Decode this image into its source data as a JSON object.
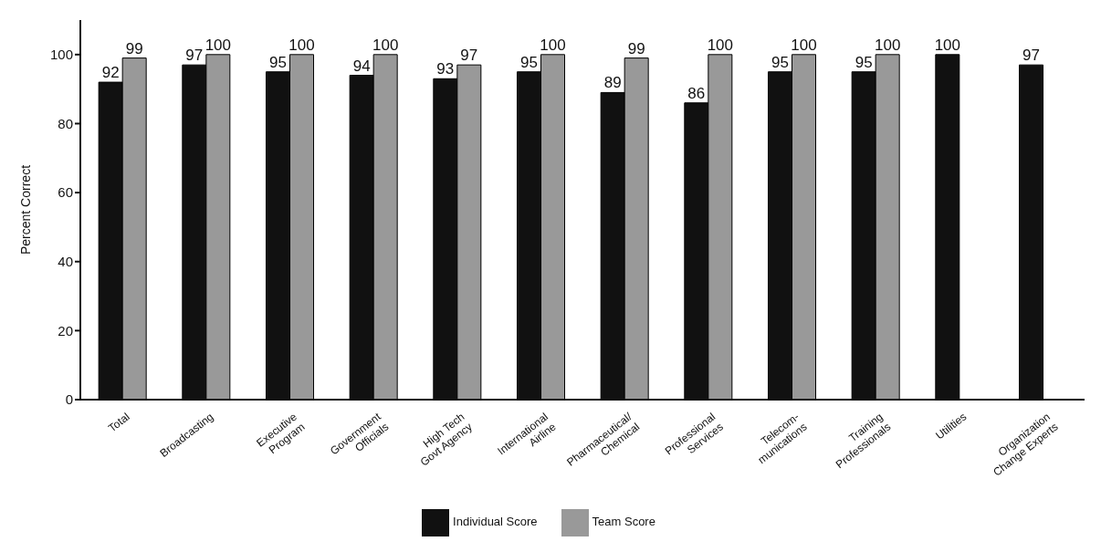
{
  "chart_data": {
    "type": "bar",
    "ylabel": "Percent Correct",
    "categories": [
      "Total",
      "Broadcasting",
      "Executive\nProgram",
      "Government\nOfficials",
      "High Tech\nGovt Agency",
      "International\nAirline",
      "Pharmaceutical/\nChemical",
      "Professional\nServices",
      "Telecom-\nmunications",
      "Training\nProfessionals",
      "Utilities",
      "Organization\nChange Experts"
    ],
    "series": [
      {
        "name": "Individual Score",
        "color": "#111111",
        "values": [
          92,
          97,
          95,
          94,
          93,
          95,
          89,
          86,
          95,
          95,
          100,
          97
        ]
      },
      {
        "name": "Team Score",
        "color": "#999999",
        "values": [
          99,
          100,
          100,
          100,
          97,
          100,
          99,
          100,
          100,
          100,
          null,
          null
        ]
      }
    ],
    "ylim": [
      0,
      110
    ],
    "yticks": [
      0,
      20,
      40,
      60,
      80,
      100
    ],
    "data_labels": true,
    "grid": false,
    "legend": "bottom"
  }
}
